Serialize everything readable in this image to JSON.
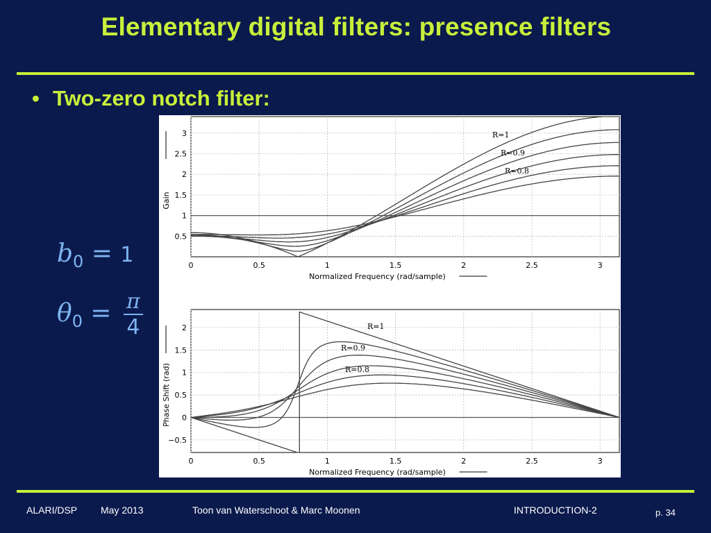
{
  "title": "Elementary digital filters: presence filters",
  "bullet": {
    "marker": "•",
    "text": "Two-zero notch filter:"
  },
  "equations": {
    "b0": {
      "symbol": "b",
      "sub": "0",
      "equals": "=",
      "value": "1"
    },
    "theta0": {
      "symbol": "θ",
      "sub": "0",
      "equals": "=",
      "numerator": "π",
      "denominator": "4"
    }
  },
  "footer": {
    "course": "ALARI/DSP",
    "date": "May 2013",
    "authors": "Toon van Waterschoot & Marc Moonen",
    "section": "INTRODUCTION-2",
    "page": "p. 34"
  },
  "colors": {
    "background": "#0b1a4d",
    "accent": "#c8f03a",
    "math": "#7eb4f0"
  },
  "chart_data": [
    {
      "type": "line",
      "title": "",
      "xlabel": "Normalized Frequency (rad/sample)",
      "ylabel": "Gain",
      "xlim": [
        0,
        3.14159
      ],
      "ylim": [
        0,
        3.4
      ],
      "xticks": [
        "0",
        "0.5",
        "1",
        "1.5",
        "2",
        "2.5",
        "3"
      ],
      "xtick_values": [
        0,
        0.5,
        1,
        1.5,
        2,
        2.5,
        3
      ],
      "yticks": [
        "0.5",
        "1",
        "1.5",
        "2",
        "2.5",
        "3"
      ],
      "ytick_values": [
        0.5,
        1,
        1.5,
        2,
        2.5,
        3
      ],
      "grid": true,
      "series": [
        {
          "name": "R=1",
          "R": 1.0
        },
        {
          "name": "R=0.9",
          "R": 0.9
        },
        {
          "name": "R=0.8",
          "R": 0.8
        },
        {
          "R": 0.7
        },
        {
          "R": 0.6
        },
        {
          "R": 0.5
        }
      ],
      "flat_line_value": 1
    },
    {
      "type": "line",
      "title": "",
      "xlabel": "Normalized Frequency (rad/sample)",
      "ylabel": "Phase Shift (rad)",
      "xlim": [
        0,
        3.14159
      ],
      "ylim": [
        -0.78,
        2.4
      ],
      "xticks": [
        "0",
        "0.5",
        "1",
        "1.5",
        "2",
        "2.5",
        "3"
      ],
      "xtick_values": [
        0,
        0.5,
        1,
        1.5,
        2,
        2.5,
        3
      ],
      "yticks": [
        "−0.5",
        "0",
        "0.5",
        "1",
        "1.5",
        "2"
      ],
      "ytick_values": [
        -0.5,
        0,
        0.5,
        1,
        1.5,
        2
      ],
      "grid": true,
      "series": [
        {
          "name": "R=1",
          "R": 1.0
        },
        {
          "name": "R=0.9",
          "R": 0.9
        },
        {
          "name": "R=0.8",
          "R": 0.8
        },
        {
          "R": 0.7
        },
        {
          "R": 0.6
        },
        {
          "R": 0.5
        }
      ],
      "flat_line_value": 0
    }
  ]
}
